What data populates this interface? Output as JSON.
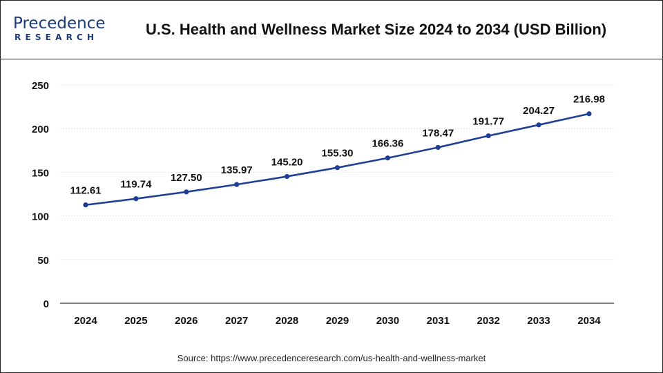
{
  "logo": {
    "name": "Precedence",
    "subtitle": "RESEARCH"
  },
  "colors": {
    "line": "#1f3f94",
    "marker": "#1f3f94",
    "grid": "#e4e4e4",
    "axis": "#333333",
    "brand": "#1a3a7a"
  },
  "source": "Source: https://www.precedenceresearch.com/us-health-and-wellness-market",
  "chart_data": {
    "type": "line",
    "title": "U.S. Health and Wellness Market Size 2024 to 2034 (USD Billion)",
    "xlabel": "",
    "ylabel": "",
    "categories": [
      "2024",
      "2025",
      "2026",
      "2027",
      "2028",
      "2029",
      "2030",
      "2031",
      "2032",
      "2033",
      "2034"
    ],
    "series": [
      {
        "name": "Market Size (USD Billion)",
        "values": [
          112.61,
          119.74,
          127.5,
          135.97,
          145.2,
          155.3,
          166.36,
          178.47,
          191.77,
          204.27,
          216.98
        ]
      }
    ],
    "data_labels": [
      "112.61",
      "119.74",
      "127.50",
      "135.97",
      "145.20",
      "155.30",
      "166.36",
      "178.47",
      "191.77",
      "204.27",
      "216.98"
    ],
    "ylim": [
      0,
      250
    ],
    "yticks": [
      0,
      50,
      100,
      150,
      200,
      250
    ],
    "grid": true,
    "legend": "none"
  }
}
